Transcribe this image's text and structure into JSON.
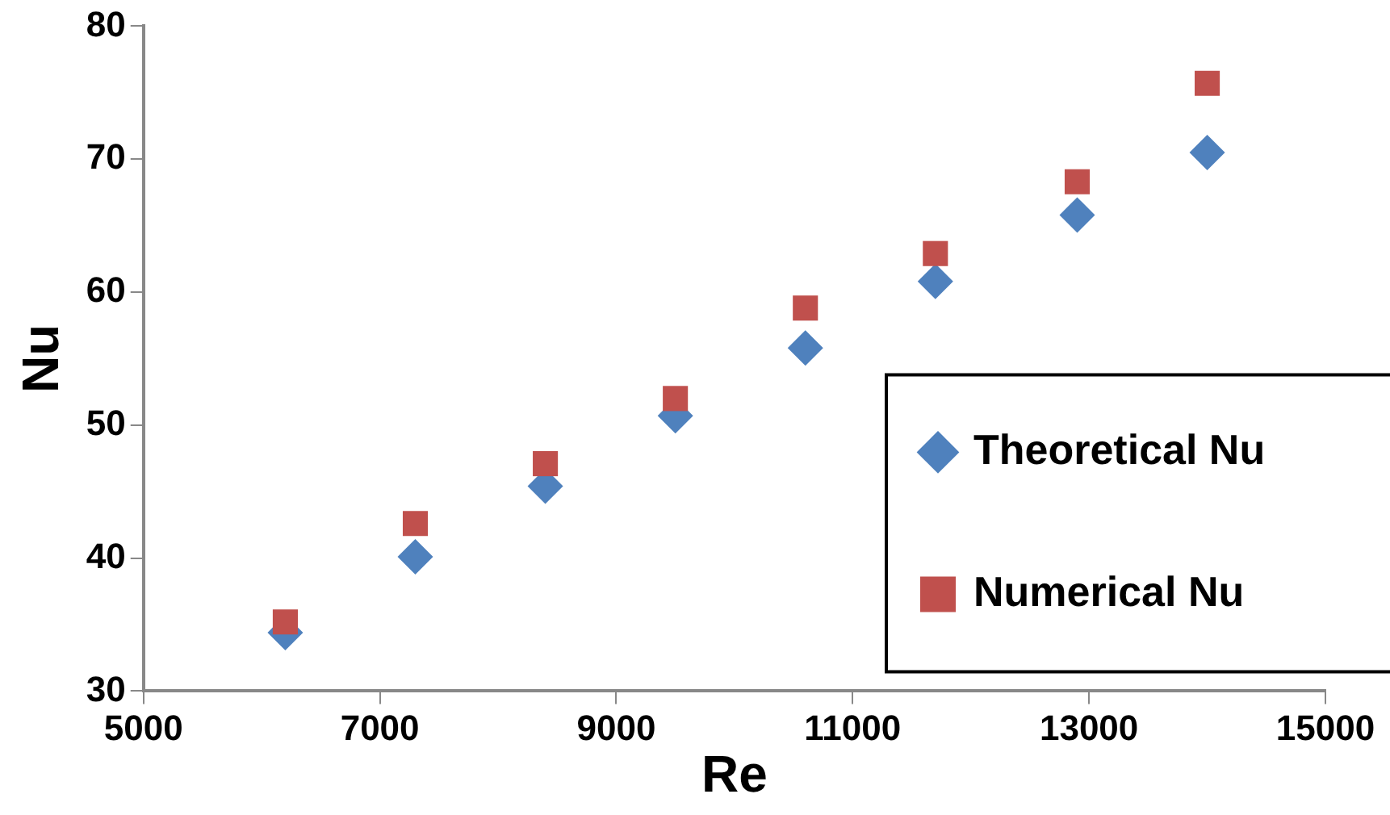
{
  "chart_data": {
    "type": "scatter",
    "xlabel": "Re",
    "ylabel": "Nu",
    "xlim": [
      5000,
      15000
    ],
    "xticks": [
      5000,
      7000,
      9000,
      11000,
      13000,
      15000
    ],
    "ylim": [
      30,
      80
    ],
    "yticks": [
      30,
      40,
      50,
      60,
      70,
      80
    ],
    "grid": false,
    "legend": "bottom right",
    "series": [
      {
        "name": "Theoretical Nu",
        "color": "#4f81bd",
        "marker": "diamond",
        "x": [
          6200,
          7300,
          8400,
          9500,
          10600,
          11700,
          12900,
          14000
        ],
        "values": [
          34.4,
          40.1,
          45.4,
          50.7,
          55.8,
          60.8,
          65.8,
          70.5
        ]
      },
      {
        "name": "Numerical Nu",
        "color": "#c0504d",
        "marker": "square",
        "x": [
          6200,
          7300,
          8400,
          9500,
          10600,
          11700,
          12900,
          14000
        ],
        "values": [
          35.2,
          42.6,
          47.1,
          52.0,
          58.8,
          62.9,
          68.3,
          75.7
        ]
      }
    ]
  }
}
